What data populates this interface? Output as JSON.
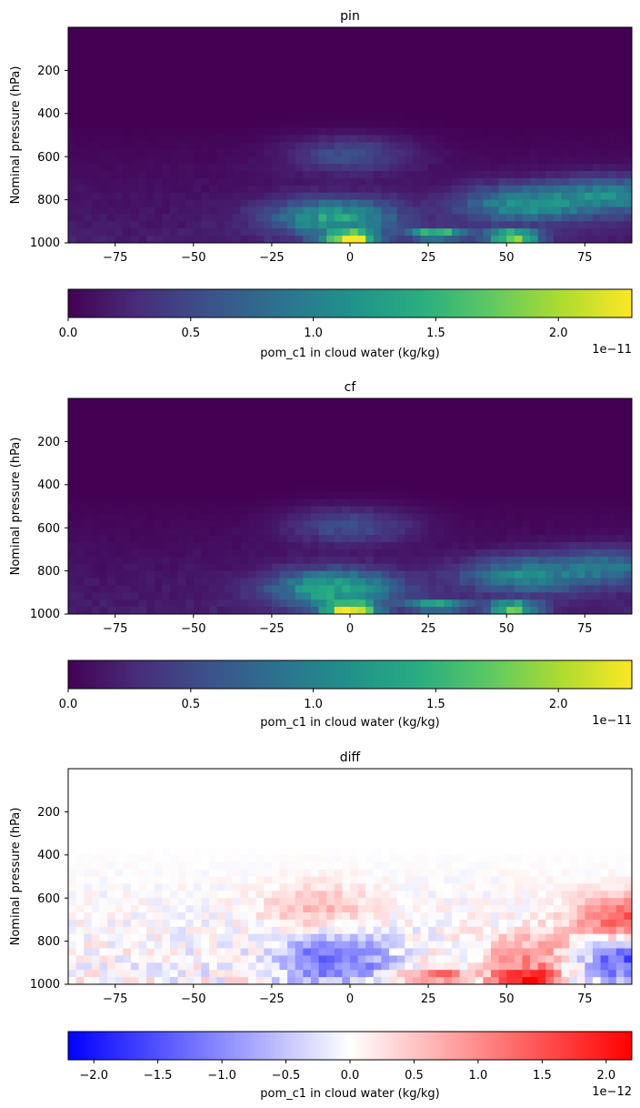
{
  "chart_data": [
    {
      "type": "heatmap",
      "title": "pin",
      "xlabel": "",
      "ylabel": "Nominal pressure (hPa)",
      "xlim": [
        -90,
        90
      ],
      "ylim": [
        1000,
        0
      ],
      "xticks": [
        -75,
        -50,
        -25,
        0,
        25,
        50,
        75
      ],
      "yticks": [
        200,
        400,
        600,
        800,
        1000
      ],
      "colormap": "viridis",
      "colorbar": {
        "label": "pom_c1 in cloud water (kg/kg)",
        "range": [
          0,
          2.3e-11
        ],
        "ticks": [
          "0.0",
          "0.5",
          "1.0",
          "1.5",
          "2.0"
        ],
        "tick_values": [
          0,
          0.5,
          1.0,
          1.5,
          2.0
        ],
        "offset": "1e−11",
        "scale": 1e-11
      },
      "features": [
        {
          "lat": 0,
          "p": 975,
          "value": 2.2e-11
        },
        {
          "lat": -5,
          "p": 880,
          "value": 1.2e-11
        },
        {
          "lat": 28,
          "p": 960,
          "value": 1.6e-11
        },
        {
          "lat": 52,
          "p": 970,
          "value": 2.1e-11
        },
        {
          "lat": 0,
          "p": 590,
          "value": 5e-12
        },
        {
          "lat": 55,
          "p": 820,
          "value": 1e-11
        },
        {
          "lat": 85,
          "p": 780,
          "value": 9e-12
        }
      ]
    },
    {
      "type": "heatmap",
      "title": "cf",
      "xlabel": "",
      "ylabel": "Nominal pressure (hPa)",
      "xlim": [
        -90,
        90
      ],
      "ylim": [
        1000,
        0
      ],
      "xticks": [
        -75,
        -50,
        -25,
        0,
        25,
        50,
        75
      ],
      "yticks": [
        200,
        400,
        600,
        800,
        1000
      ],
      "colormap": "viridis",
      "colorbar": {
        "label": "pom_c1 in cloud water (kg/kg)",
        "range": [
          0,
          2.3e-11
        ],
        "ticks": [
          "0.0",
          "0.5",
          "1.0",
          "1.5",
          "2.0"
        ],
        "tick_values": [
          0,
          0.5,
          1.0,
          1.5,
          2.0
        ],
        "offset": "1e−11",
        "scale": 1e-11
      },
      "features": [
        {
          "lat": 0,
          "p": 975,
          "value": 2.2e-11
        },
        {
          "lat": -5,
          "p": 880,
          "value": 1.3e-11
        },
        {
          "lat": 28,
          "p": 960,
          "value": 1.5e-11
        },
        {
          "lat": 52,
          "p": 970,
          "value": 1.8e-11
        },
        {
          "lat": 0,
          "p": 590,
          "value": 5e-12
        },
        {
          "lat": 55,
          "p": 820,
          "value": 9e-12
        },
        {
          "lat": 85,
          "p": 780,
          "value": 7e-12
        }
      ]
    },
    {
      "type": "heatmap",
      "title": "diff",
      "xlabel": "",
      "ylabel": "Nominal pressure (hPa)",
      "xlim": [
        -90,
        90
      ],
      "ylim": [
        1000,
        0
      ],
      "xticks": [
        -75,
        -50,
        -25,
        0,
        25,
        50,
        75
      ],
      "yticks": [
        200,
        400,
        600,
        800,
        1000
      ],
      "colormap": "bwr",
      "colorbar": {
        "label": "pom_c1 in cloud water (kg/kg)",
        "range": [
          -2.2e-12,
          2.2e-12
        ],
        "ticks": [
          "−2.0",
          "−1.5",
          "−1.0",
          "−0.5",
          "0.0",
          "0.5",
          "1.0",
          "1.5",
          "2.0"
        ],
        "tick_values": [
          -2.0,
          -1.5,
          -1.0,
          -0.5,
          0.0,
          0.5,
          1.0,
          1.5,
          2.0
        ],
        "offset": "1e−12",
        "scale": 1e-12
      },
      "features": [
        {
          "lat": 55,
          "p": 970,
          "value": 2e-12
        },
        {
          "lat": 28,
          "p": 960,
          "value": 1.3e-12
        },
        {
          "lat": -5,
          "p": 880,
          "value": -1.4e-12
        },
        {
          "lat": 88,
          "p": 880,
          "value": -1.6e-12
        },
        {
          "lat": 88,
          "p": 700,
          "value": 1.5e-12
        },
        {
          "lat": -10,
          "p": 650,
          "value": 6e-13
        },
        {
          "lat": 60,
          "p": 880,
          "value": 1e-12
        }
      ]
    }
  ]
}
